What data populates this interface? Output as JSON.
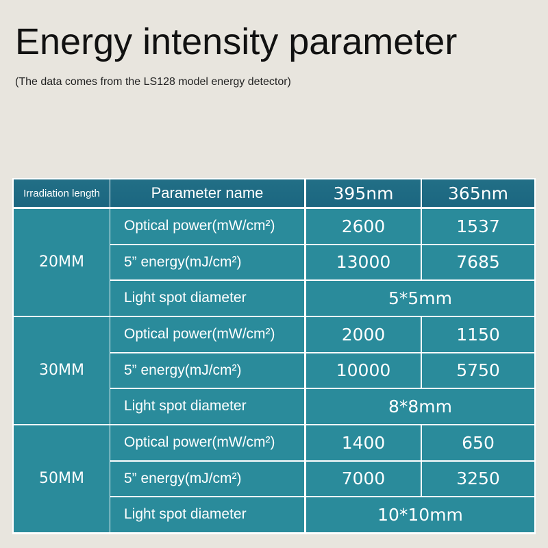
{
  "header": {
    "title": "Energy intensity parameter",
    "subtitle": "(The data comes from the LS128 model energy detector)"
  },
  "table": {
    "columns": [
      "Irradiation length",
      "Parameter name",
      "395nm",
      "365nm"
    ],
    "groups": [
      {
        "length": "20MM",
        "rows": [
          [
            "Optical power(mW/cm²)",
            "2600",
            "1537"
          ],
          [
            "5” energy(mJ/cm²)",
            "13000",
            "7685"
          ],
          [
            "Light spot diameter",
            "5*5mm"
          ]
        ]
      },
      {
        "length": "30MM",
        "rows": [
          [
            "Optical power(mW/cm²)",
            "2000",
            "1150"
          ],
          [
            "5” energy(mJ/cm²)",
            "10000",
            "5750"
          ],
          [
            "Light spot diameter",
            "8*8mm"
          ]
        ]
      },
      {
        "length": "50MM",
        "rows": [
          [
            "Optical power(mW/cm²)",
            "1400",
            "650"
          ],
          [
            "5” energy(mJ/cm²)",
            "7000",
            "3250"
          ],
          [
            "Light spot diameter",
            "10*10mm"
          ]
        ]
      }
    ]
  }
}
